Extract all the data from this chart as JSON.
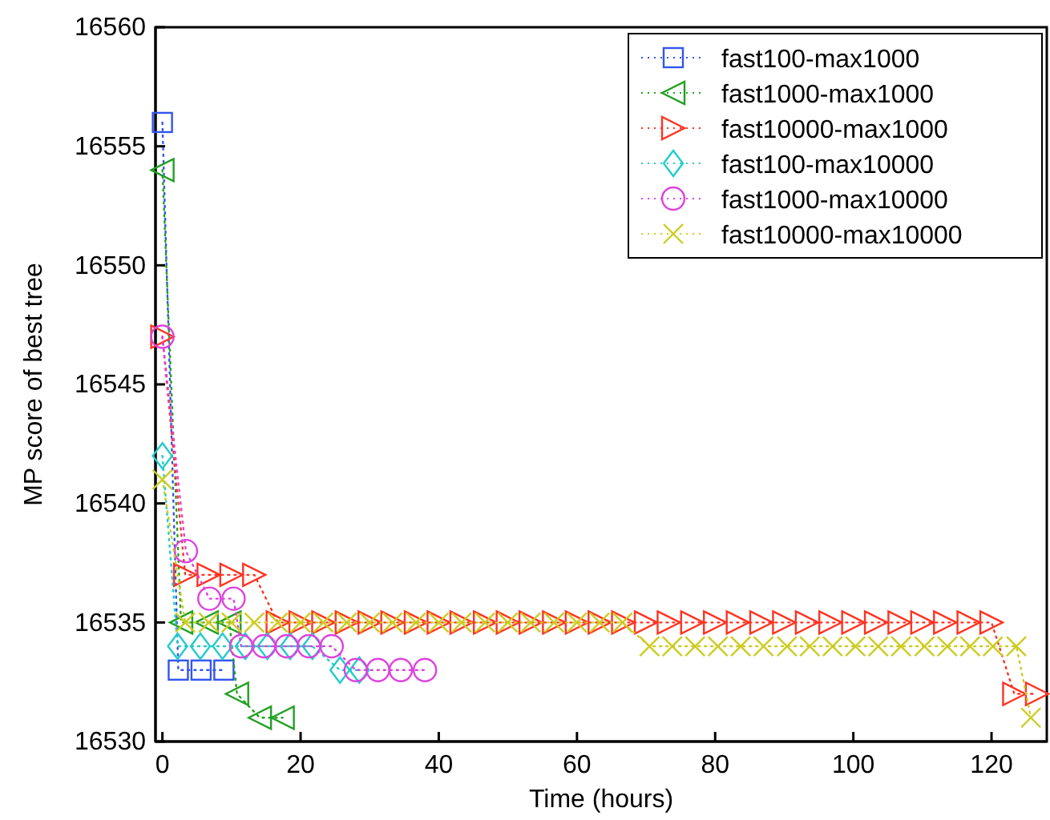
{
  "chart_data": {
    "type": "line",
    "xlabel": "Time (hours)",
    "ylabel": "MP score of best tree",
    "xlim": [
      -1,
      128
    ],
    "ylim": [
      16530,
      16560
    ],
    "xticks": [
      0,
      20,
      40,
      60,
      80,
      100,
      120
    ],
    "yticks": [
      16530,
      16535,
      16540,
      16545,
      16550,
      16555,
      16560
    ],
    "grid": false,
    "legend": "top right",
    "line_style": "dotted",
    "series": [
      {
        "name": "fast100-max1000",
        "color": "#3355ee",
        "marker": "square",
        "x": [
          0,
          2.3,
          5.6,
          8.9
        ],
        "values": [
          16556,
          16533,
          16533,
          16533
        ]
      },
      {
        "name": "fast1000-max1000",
        "color": "#22a022",
        "marker": "triangle-left",
        "x": [
          0,
          2.7,
          6.4,
          9.7,
          10.8,
          14.1,
          17.4
        ],
        "values": [
          16554,
          16535,
          16535,
          16535,
          16532,
          16531,
          16531
        ]
      },
      {
        "name": "fast10000-max1000",
        "color": "#ff3322",
        "marker": "triangle-right",
        "x": [
          0,
          3.3,
          6.7,
          10,
          13.3,
          16.7,
          20,
          23.3,
          26.7,
          30,
          33.3,
          36.7,
          40,
          43.3,
          46.7,
          50,
          53.3,
          56.7,
          60,
          63.3,
          66.7,
          70,
          73.3,
          76.7,
          80,
          83.3,
          86.7,
          90,
          93.3,
          96.7,
          100,
          103.3,
          106.7,
          110,
          113.3,
          116.7,
          120,
          123.3,
          126.6
        ],
        "values": [
          16547,
          16537,
          16537,
          16537,
          16537,
          16535,
          16535,
          16535,
          16535,
          16535,
          16535,
          16535,
          16535,
          16535,
          16535,
          16535,
          16535,
          16535,
          16535,
          16535,
          16535,
          16535,
          16535,
          16535,
          16535,
          16535,
          16535,
          16535,
          16535,
          16535,
          16535,
          16535,
          16535,
          16535,
          16535,
          16535,
          16535,
          16532,
          16532
        ]
      },
      {
        "name": "fast100-max10000",
        "color": "#22cccc",
        "marker": "diamond",
        "x": [
          0,
          2.2,
          5.5,
          8.7,
          12,
          15.2,
          18.5,
          21.7,
          25.7,
          28.5
        ],
        "values": [
          16542,
          16534,
          16534,
          16534,
          16534,
          16534,
          16534,
          16534,
          16533,
          16533
        ]
      },
      {
        "name": "fast1000-max10000",
        "color": "#dd44dd",
        "marker": "circle",
        "x": [
          0,
          3.4,
          6.8,
          10.3,
          11.4,
          14.7,
          18,
          21.2,
          24.5,
          28,
          31.2,
          34.5,
          38
        ],
        "values": [
          16547,
          16538,
          16536,
          16536,
          16534,
          16534,
          16534,
          16534,
          16534,
          16533,
          16533,
          16533,
          16533
        ]
      },
      {
        "name": "fast10000-max10000",
        "color": "#cccc22",
        "marker": "cross",
        "x": [
          0,
          3.3,
          6.7,
          10,
          13.3,
          16.7,
          20,
          23.3,
          26.7,
          30,
          33.3,
          36.7,
          40,
          43.3,
          46.7,
          50,
          53.3,
          56.7,
          60,
          63.3,
          66.6,
          70.5,
          73.8,
          77.1,
          80.4,
          83.7,
          87,
          90.4,
          93.7,
          97,
          100.3,
          103.6,
          106.9,
          110.3,
          113.6,
          116.9,
          120.2,
          123.6,
          125.7
        ],
        "values": [
          16541,
          16535,
          16535,
          16535,
          16535,
          16535,
          16535,
          16535,
          16535,
          16535,
          16535,
          16535,
          16535,
          16535,
          16535,
          16535,
          16535,
          16535,
          16535,
          16535,
          16535,
          16534,
          16534,
          16534,
          16534,
          16534,
          16534,
          16534,
          16534,
          16534,
          16534,
          16534,
          16534,
          16534,
          16534,
          16534,
          16534,
          16534,
          16531
        ]
      }
    ]
  }
}
